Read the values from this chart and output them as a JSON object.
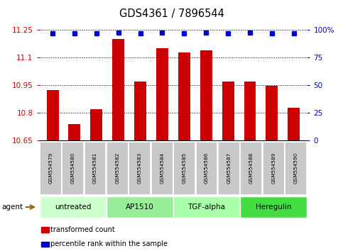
{
  "title": "GDS4361 / 7896544",
  "samples": [
    "GSM554579",
    "GSM554580",
    "GSM554581",
    "GSM554582",
    "GSM554583",
    "GSM554584",
    "GSM554585",
    "GSM554586",
    "GSM554587",
    "GSM554588",
    "GSM554589",
    "GSM554590"
  ],
  "bar_values": [
    10.925,
    10.74,
    10.82,
    11.2,
    10.97,
    11.15,
    11.13,
    11.14,
    10.97,
    10.97,
    10.948,
    10.83
  ],
  "percentile_values": [
    97,
    97,
    97,
    98,
    97,
    98,
    97,
    98,
    97,
    98,
    97,
    97
  ],
  "ylim_left": [
    10.65,
    11.25
  ],
  "ylim_right": [
    0,
    100
  ],
  "yticks_left": [
    10.65,
    10.8,
    10.95,
    11.1,
    11.25
  ],
  "yticks_right": [
    0,
    25,
    50,
    75,
    100
  ],
  "ytick_labels_left": [
    "10.65",
    "10.8",
    "10.95",
    "11.1",
    "11.25"
  ],
  "ytick_labels_right": [
    "0",
    "25",
    "50",
    "75",
    "100%"
  ],
  "bar_color": "#CC0000",
  "percentile_color": "#0000CC",
  "plot_bg": "#FFFFFF",
  "groups": [
    {
      "label": "untreated",
      "start": 0,
      "end": 3,
      "color": "#CCFFCC"
    },
    {
      "label": "AP1510",
      "start": 3,
      "end": 6,
      "color": "#99EE99"
    },
    {
      "label": "TGF-alpha",
      "start": 6,
      "end": 9,
      "color": "#AAFFAA"
    },
    {
      "label": "Heregulin",
      "start": 9,
      "end": 12,
      "color": "#44DD44"
    }
  ],
  "legend_items": [
    {
      "label": "transformed count",
      "color": "#CC0000"
    },
    {
      "label": "percentile rank within the sample",
      "color": "#0000CC"
    }
  ],
  "agent_label": "agent",
  "sample_bg": "#C8C8C8",
  "sample_edge": "#FFFFFF",
  "group_edge": "#FFFFFF"
}
